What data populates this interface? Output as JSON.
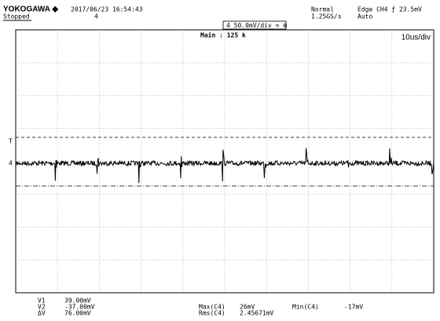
{
  "header": {
    "brand": "YOKOGAWA ◆",
    "status": "Stopped",
    "datetime": "2017/06/23 16:54:43",
    "channel_marker": "4",
    "acquisition": "Normal",
    "sample_rate": "1.25GS/s",
    "trigger": "Edge CH4 ƒ 23.5mV",
    "trigger_mode": "Auto",
    "channel_scale": "4  50.0mV/div  ≈ ⊞"
  },
  "screen": {
    "zoom": "Main : 125 k",
    "timebase": "10us/div",
    "trigger_marker": "T",
    "ground_marker": "4"
  },
  "measurements": {
    "cursors": [
      {
        "label": "V1",
        "value": "39.00mV"
      },
      {
        "label": "V2",
        "value": "-37.00mV"
      },
      {
        "label": "ΔV",
        "value": "76.00mV"
      }
    ],
    "stats": [
      {
        "label": "Max(C4)",
        "value": "26mV"
      },
      {
        "label": "Rms(C4)",
        "value": "2.45671mV"
      },
      {
        "label": "Min(C4)",
        "value": "-17mV"
      }
    ]
  }
}
